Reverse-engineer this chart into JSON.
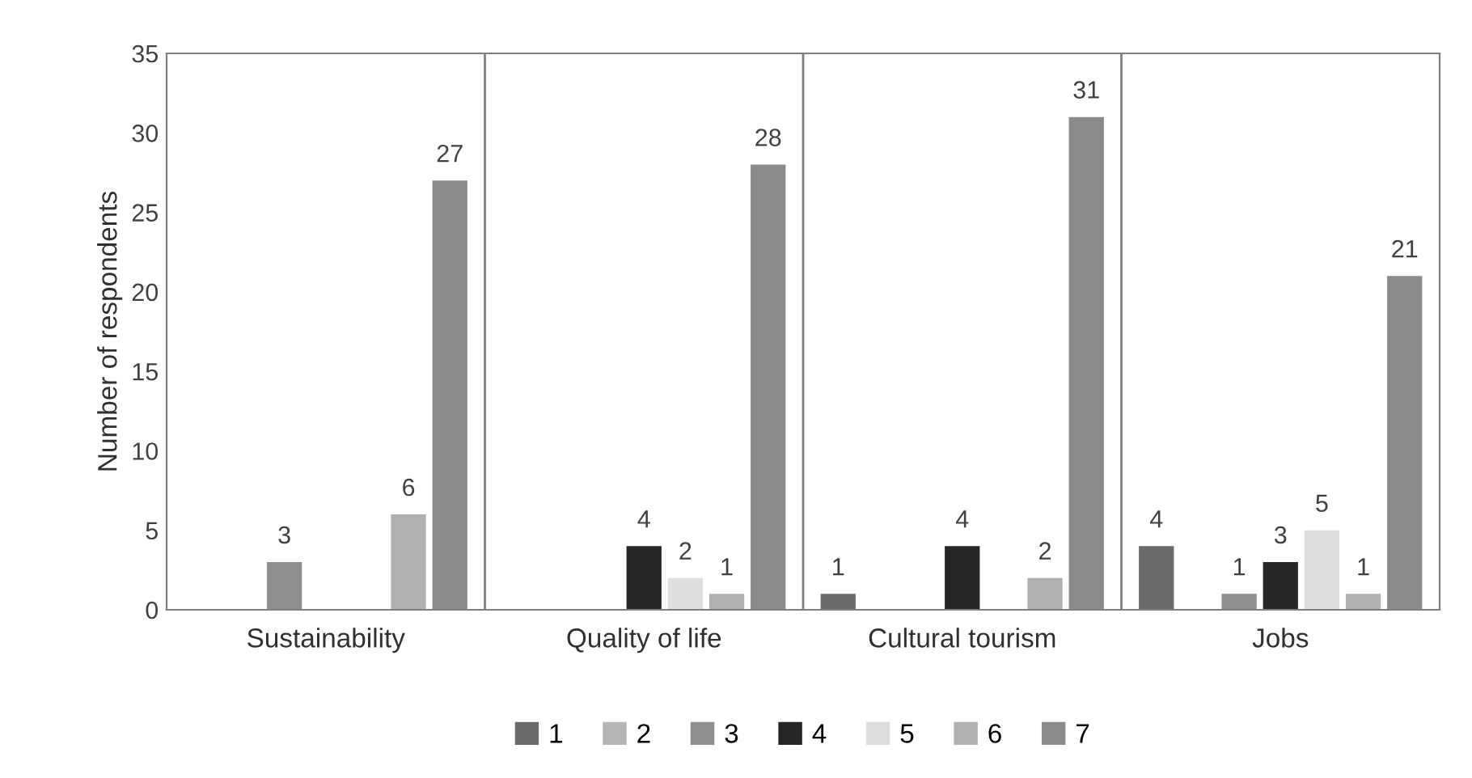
{
  "chart_data": {
    "type": "bar",
    "ylabel": "Number of respondents",
    "categories": [
      "Sustainability",
      "Quality of life",
      "Cultural tourism",
      "Jobs"
    ],
    "series": [
      {
        "name": "1",
        "color": "#6b6b6b",
        "values": [
          0,
          0,
          1,
          4
        ],
        "value_labels": [
          null,
          null,
          "1",
          "4"
        ]
      },
      {
        "name": "2",
        "color": "#b5b5b5",
        "values": [
          0,
          0,
          0,
          0
        ],
        "value_labels": [
          null,
          null,
          null,
          null
        ]
      },
      {
        "name": "3",
        "color": "#8e8e8e",
        "values": [
          3,
          0,
          0,
          1
        ],
        "value_labels": [
          "3",
          null,
          null,
          "1"
        ]
      },
      {
        "name": "4",
        "color": "#262626",
        "values": [
          0,
          4,
          4,
          3
        ],
        "value_labels": [
          null,
          "4",
          "4",
          "3"
        ]
      },
      {
        "name": "5",
        "color": "#dedede",
        "values": [
          0,
          2,
          0,
          5
        ],
        "value_labels": [
          null,
          "2",
          null,
          "5"
        ]
      },
      {
        "name": "6",
        "color": "#b0b0b0",
        "values": [
          6,
          1,
          2,
          1
        ],
        "value_labels": [
          "6",
          "1",
          "2",
          "1"
        ]
      },
      {
        "name": "7",
        "color": "#8a8a8a",
        "values": [
          27,
          28,
          31,
          21
        ],
        "value_labels": [
          "27",
          "28",
          "31",
          "21"
        ]
      }
    ],
    "ylim": [
      0,
      35
    ],
    "yticks": [
      0,
      5,
      10,
      15,
      20,
      25,
      30,
      35
    ],
    "grid": false,
    "legend": "bottom"
  }
}
